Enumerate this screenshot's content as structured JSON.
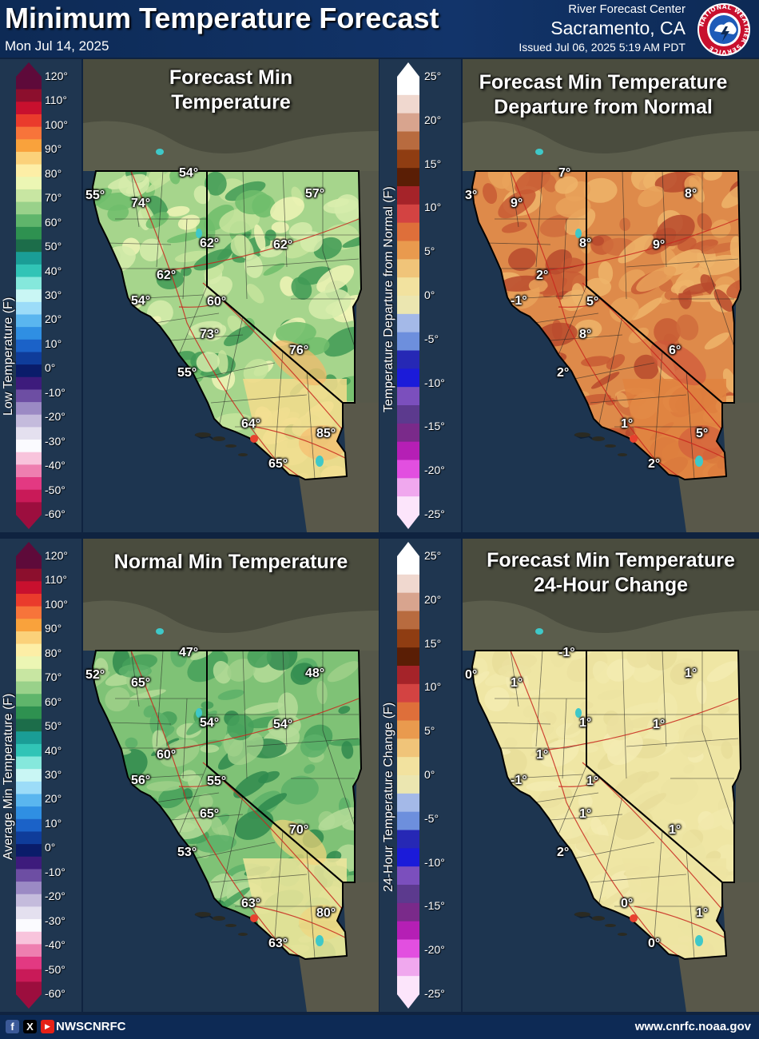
{
  "header": {
    "title": "Minimum Temperature Forecast",
    "date": "Mon Jul 14, 2025",
    "rfc": "River Forecast Center",
    "office": "Sacramento, CA",
    "issued": "Issued Jul 06, 2025 5:19 AM PDT",
    "logo_text": "NATIONAL WEATHER SERVICE"
  },
  "legends": {
    "temperature": {
      "ticks": [
        "120°",
        "110°",
        "100°",
        "90°",
        "80°",
        "70°",
        "60°",
        "50°",
        "40°",
        "30°",
        "20°",
        "10°",
        "0°",
        "-10°",
        "-20°",
        "-30°",
        "-40°",
        "-50°",
        "-60°"
      ],
      "colors": [
        "#5e0a3a",
        "#8c0f2d",
        "#c8102e",
        "#ea3b2c",
        "#f7743a",
        "#f9a23c",
        "#fbd17a",
        "#fdeea6",
        "#ecf6b4",
        "#c8e6a2",
        "#99d18a",
        "#5fb56b",
        "#2e9150",
        "#1c6d4a",
        "#1a9d96",
        "#31c4b6",
        "#85e8dc",
        "#c9f6f4",
        "#9cdcf8",
        "#5ab6ef",
        "#2f8fe3",
        "#1b62c8",
        "#0f3c9a",
        "#0a1c6a",
        "#3d1b7c",
        "#6d4ea3",
        "#9b8ac4",
        "#c4bbdc",
        "#e4e0ef",
        "#fbfbff",
        "#f8c4dc",
        "#ee7fb0",
        "#e33982",
        "#c91a58",
        "#9c0e3e"
      ],
      "top_title": "Low Temperature (F)",
      "bottom_title": "Average Min Temperature (F)"
    },
    "departure": {
      "ticks": [
        "25°",
        "20°",
        "15°",
        "10°",
        "5°",
        "0°",
        "-5°",
        "-10°",
        "-15°",
        "-20°",
        "-25°"
      ],
      "colors": [
        "#ffffff",
        "#f0d8cf",
        "#d8a48e",
        "#b86b3f",
        "#8f3d12",
        "#5a1e05",
        "#a52329",
        "#d34342",
        "#de6f3a",
        "#e99a4e",
        "#f0c479",
        "#f2e29f",
        "#ebe6b0",
        "#a4b9e8",
        "#6d8fdd",
        "#2628b5",
        "#1b1bd9",
        "#7b4fbd",
        "#5c3a8e",
        "#7a2a8a",
        "#b51fb5",
        "#e24fe0",
        "#f0a8ee",
        "#fce5fb"
      ],
      "top_title": "Temperature Departure from Normal (F)",
      "bottom_title": "24-Hour Temperature Change (F)"
    }
  },
  "panels": {
    "forecast": {
      "title_line1": "Forecast Min",
      "title_line2": "Temperature",
      "labels": [
        "54°",
        "55°",
        "74°",
        "57°",
        "62°",
        "62°",
        "62°",
        "54°",
        "60°",
        "73°",
        "76°",
        "55°",
        "64°",
        "85°",
        "65°"
      ]
    },
    "departure": {
      "title_line1": "Forecast Min Temperature",
      "title_line2": "Departure from Normal",
      "labels": [
        "7°",
        "3°",
        "9°",
        "8°",
        "8°",
        "9°",
        "2°",
        "-1°",
        "5°",
        "8°",
        "6°",
        "2°",
        "1°",
        "5°",
        "2°"
      ]
    },
    "normal": {
      "title_line1": "Normal Min Temperature",
      "title_line2": "",
      "labels": [
        "47°",
        "52°",
        "65°",
        "48°",
        "54°",
        "54°",
        "60°",
        "56°",
        "55°",
        "65°",
        "70°",
        "53°",
        "63°",
        "80°",
        "63°"
      ]
    },
    "change": {
      "title_line1": "Forecast Min Temperature",
      "title_line2": "24-Hour Change",
      "labels": [
        "-1°",
        "0°",
        "1°",
        "1°",
        "1°",
        "1°",
        "1°",
        "-1°",
        "1°",
        "1°",
        "1°",
        "2°",
        "0°",
        "1°",
        "0°"
      ]
    }
  },
  "footer": {
    "handle": "NWSCNRFC",
    "website": "www.cnrfc.noaa.gov",
    "icons": [
      "facebook-icon",
      "x-icon",
      "youtube-icon"
    ]
  }
}
